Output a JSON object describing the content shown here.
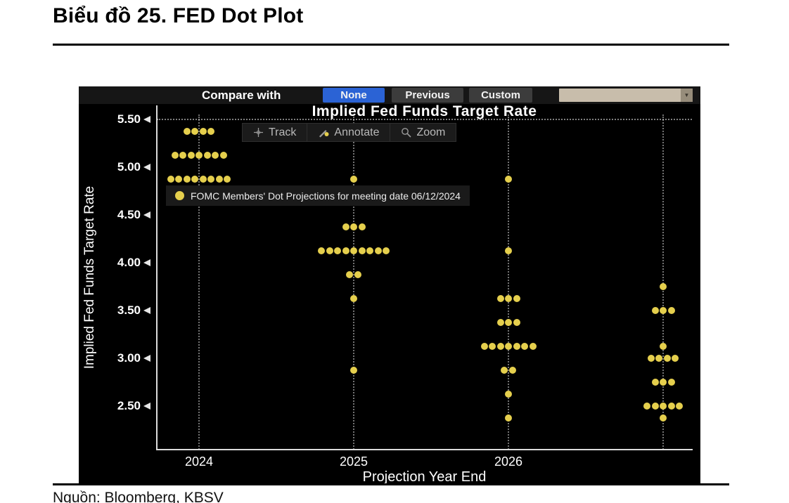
{
  "page": {
    "heading": "Biểu đồ 25.  FED Dot Plot",
    "source": "Nguồn: Bloomberg, KBSV"
  },
  "compare_bar": {
    "label": "Compare with",
    "options": [
      {
        "label": "None",
        "selected": true
      },
      {
        "label": "Previous",
        "selected": false
      },
      {
        "label": "Custom",
        "selected": false
      }
    ],
    "dropdown": {
      "value": "",
      "arrow": "▼"
    }
  },
  "chart": {
    "tools": [
      {
        "name": "track",
        "label": "Track"
      },
      {
        "name": "annotate",
        "label": "Annotate"
      },
      {
        "name": "zoom",
        "label": "Zoom"
      }
    ],
    "legend": "FOMC Members' Dot Projections for meeting date 06/12/2024",
    "colors": {
      "dot": "#E5CF4D",
      "selected_button": "#2B63D5",
      "button_gray": "#3C3C3C",
      "dropdown_tan": "#C8BDAB",
      "background": "#000000"
    }
  },
  "chart_data": {
    "type": "scatter",
    "title": "Implied Fed Funds Target Rate",
    "xlabel": "Projection Year End",
    "ylabel": "Implied Fed Funds Target Rate",
    "yticks": [
      5.5,
      5.0,
      4.5,
      4.0,
      3.5,
      3.0,
      2.5
    ],
    "ylim": [
      2.0,
      5.65
    ],
    "grid": "dotted vertical per column, dotted horizontal at 5.50",
    "legend_position": "upper-left inside plot",
    "columns": [
      {
        "label": "2024",
        "dots": [
          {
            "rate": 5.375,
            "count": 4
          },
          {
            "rate": 5.125,
            "count": 7
          },
          {
            "rate": 4.875,
            "count": 8
          }
        ]
      },
      {
        "label": "2025",
        "dots": [
          {
            "rate": 4.875,
            "count": 1
          },
          {
            "rate": 4.375,
            "count": 3
          },
          {
            "rate": 4.125,
            "count": 9
          },
          {
            "rate": 3.875,
            "count": 2
          },
          {
            "rate": 3.625,
            "count": 1
          },
          {
            "rate": 2.875,
            "count": 1
          }
        ]
      },
      {
        "label": "2026",
        "dots": [
          {
            "rate": 4.875,
            "count": 1
          },
          {
            "rate": 4.125,
            "count": 1
          },
          {
            "rate": 3.625,
            "count": 3
          },
          {
            "rate": 3.375,
            "count": 3
          },
          {
            "rate": 3.125,
            "count": 7
          },
          {
            "rate": 2.875,
            "count": 2
          },
          {
            "rate": 2.625,
            "count": 1
          },
          {
            "rate": 2.375,
            "count": 1
          }
        ]
      },
      {
        "label": "",
        "dots": [
          {
            "rate": 3.75,
            "count": 1
          },
          {
            "rate": 3.5,
            "count": 3
          },
          {
            "rate": 3.125,
            "count": 1
          },
          {
            "rate": 3.0,
            "count": 4
          },
          {
            "rate": 2.75,
            "count": 3
          },
          {
            "rate": 2.5,
            "count": 5
          },
          {
            "rate": 2.375,
            "count": 1
          }
        ]
      }
    ]
  }
}
